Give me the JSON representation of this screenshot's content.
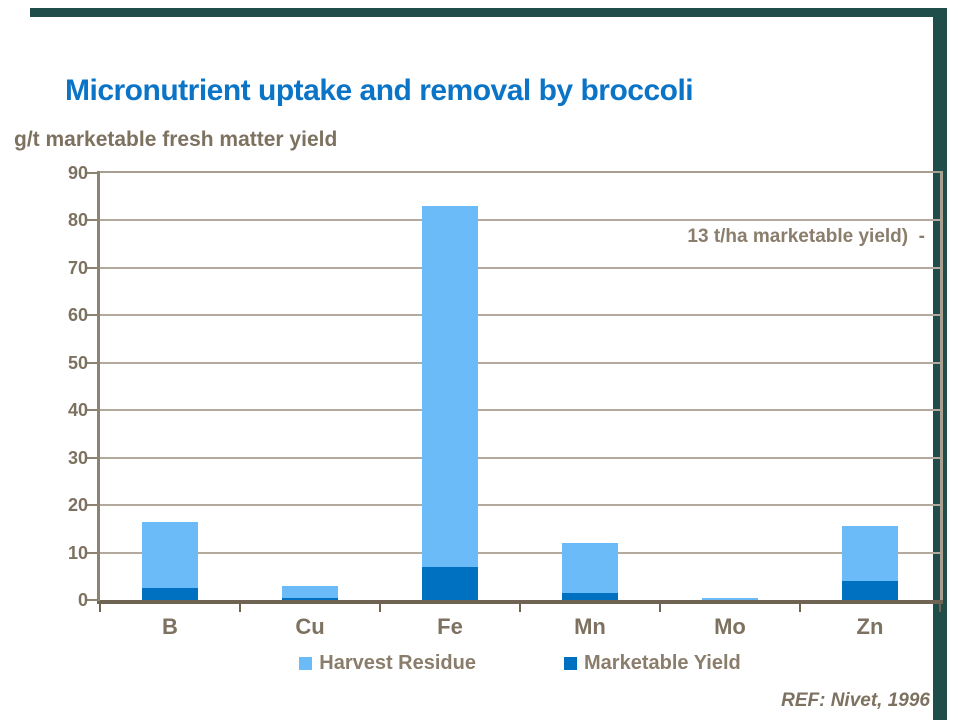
{
  "slide": {
    "title": "Micronutrient uptake and removal by broccoli",
    "units_label": "g/t marketable fresh matter yield",
    "annotation": "13 t/ha marketable yield)  -",
    "reference": "REF: Nivet, 1996"
  },
  "colors": {
    "accent_blue": "#0B74C6",
    "series_light_blue": "#6BBBF8",
    "series_dark_blue": "#0070C0",
    "text_brown": "#7D7160",
    "legend_text": "#8A7D6B",
    "gridline": "#B3AA9D",
    "axis_line": "#8D8372",
    "axis_bottom": "#6F6454",
    "plot_border": "#A99F91",
    "slide_border_teal": "#1F4E4A"
  },
  "chart_data": {
    "type": "bar",
    "stacked": true,
    "title": "Micronutrient uptake and removal by broccoli",
    "ylabel": "g/t marketable fresh matter yield",
    "xlabel": "",
    "categories": [
      "B",
      "Cu",
      "Fe",
      "Mn",
      "Mo",
      "Zn"
    ],
    "series": [
      {
        "name": "Marketable Yield",
        "color": "#0070C0",
        "values": [
          2.5,
          0.5,
          7,
          1.5,
          0.1,
          4
        ]
      },
      {
        "name": "Harvest Residue",
        "color": "#6BBBF8",
        "values": [
          14,
          2.5,
          76,
          10.5,
          0.4,
          11.5
        ]
      }
    ],
    "totals": [
      16.5,
      3,
      83,
      12,
      0.5,
      15.5
    ],
    "ylim": [
      0,
      90
    ],
    "ytick_step": 10,
    "grid": true,
    "legend_position": "bottom",
    "legend": [
      {
        "label": "Harvest Residue",
        "color": "#6BBBF8"
      },
      {
        "label": "Marketable Yield",
        "color": "#0070C0"
      }
    ],
    "annotation": "13 t/ha marketable yield)  -",
    "source": "REF: Nivet, 1996"
  }
}
